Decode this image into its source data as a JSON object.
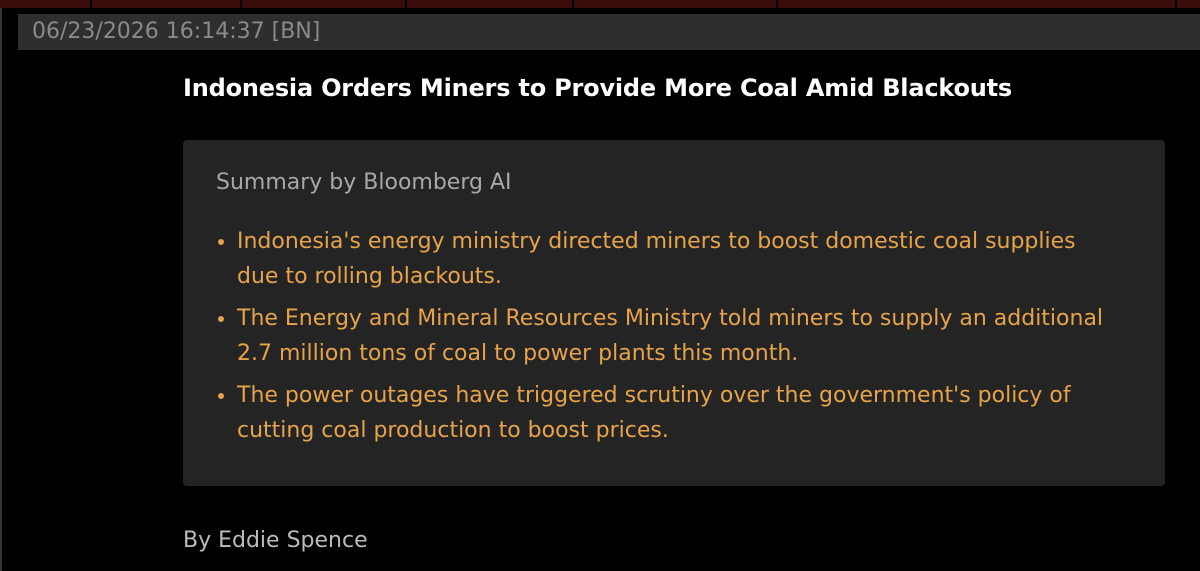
{
  "header": {
    "timestamp": "06/23/2026 16:14:37",
    "source": "[BN]"
  },
  "article": {
    "headline": "Indonesia Orders Miners to Provide More Coal Amid Blackouts",
    "summary": {
      "title": "Summary by Bloomberg AI",
      "bullets": [
        "Indonesia's energy ministry directed miners to boost domestic coal supplies due to rolling blackouts.",
        "The Energy and Mineral Resources Ministry told miners to supply an additional 2.7 million tons of coal to power plants this month.",
        "The power outages have triggered scrutiny over the government's policy of cutting coal production to boost prices."
      ]
    },
    "byline": "By Eddie Spence"
  }
}
